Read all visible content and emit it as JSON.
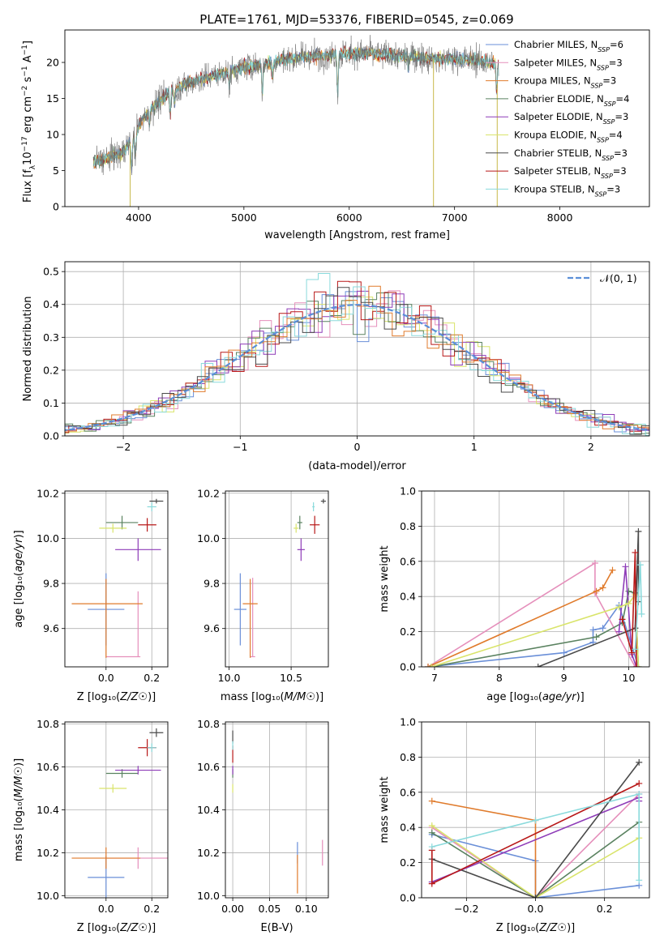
{
  "figure": {
    "title": "PLATE=1761, MJD=53376, FIBERID=0545, z=0.069"
  },
  "colors": {
    "Chabrier MILES": "#6a8fd8",
    "Salpeter MILES": "#e58fbb",
    "Kroupa MILES": "#e07b2c",
    "Chabrier ELODIE": "#5a8260",
    "Salpeter ELODIE": "#8e3cb8",
    "Kroupa ELODIE": "#d9e46a",
    "Chabrier STELIB": "#4a4a4a",
    "Salpeter STELIB": "#b81818",
    "Kroupa STELIB": "#8adadc"
  },
  "chart_data": [
    {
      "id": "spectrum",
      "type": "line",
      "xlabel": "wavelength [Angstrom, rest frame]",
      "ylabel": "Flux [f_λ10^-17 erg cm^-2 s^-1 A^-1]",
      "xlim": [
        3300,
        8850
      ],
      "ylim": [
        0,
        24.5
      ],
      "xticks": [
        4000,
        5000,
        6000,
        7000,
        8000
      ],
      "yticks": [
        0,
        5,
        10,
        15,
        20
      ],
      "legend_position": "right",
      "legend": [
        {
          "model": "Chabrier MILES",
          "nssp": "6"
        },
        {
          "model": "Salpeter MILES",
          "nssp": "3"
        },
        {
          "model": "Kroupa MILES",
          "nssp": "3"
        },
        {
          "model": "Chabrier ELODIE",
          "nssp": "4"
        },
        {
          "model": "Salpeter ELODIE",
          "nssp": "3"
        },
        {
          "model": "Kroupa ELODIE",
          "nssp": "4"
        },
        {
          "model": "Chabrier STELIB",
          "nssp": "3"
        },
        {
          "model": "Salpeter STELIB",
          "nssp": "3"
        },
        {
          "model": "Kroupa STELIB",
          "nssp": "3"
        }
      ],
      "continuum": {
        "x": [
          3570,
          3650,
          3750,
          3850,
          3950,
          4050,
          4150,
          4300,
          4450,
          4600,
          4800,
          5000,
          5200,
          5400,
          5600,
          5800,
          6000,
          6200,
          6400,
          6600,
          6800,
          7000,
          7200,
          7400
        ],
        "y": [
          6.0,
          6.5,
          7.0,
          7.5,
          9.5,
          12.5,
          14.0,
          16.0,
          17.0,
          17.7,
          18.5,
          19.3,
          19.8,
          20.5,
          20.8,
          21.0,
          21.2,
          21.3,
          21.0,
          20.8,
          20.5,
          20.5,
          20.3,
          19.8
        ]
      },
      "absorption_features": [
        {
          "x": 3934,
          "depth": 4.0
        },
        {
          "x": 3969,
          "depth": 3.0
        },
        {
          "x": 4102,
          "depth": 2.0
        },
        {
          "x": 4300,
          "depth": 3.0
        },
        {
          "x": 4340,
          "depth": 2.0
        },
        {
          "x": 4861,
          "depth": 2.0
        },
        {
          "x": 5175,
          "depth": 4.0
        },
        {
          "x": 5270,
          "depth": 2.0
        },
        {
          "x": 5890,
          "depth": 5.5
        },
        {
          "x": 6563,
          "depth": 1.5
        },
        {
          "x": 7400,
          "depth": 4.0
        }
      ],
      "masked_spikes": [
        {
          "x": 3920,
          "to": 0
        },
        {
          "x": 6800,
          "to": 0
        },
        {
          "x": 7405,
          "to": 0
        }
      ]
    },
    {
      "id": "residuals",
      "type": "histogram",
      "xlabel": "(data-model)/error",
      "ylabel": "Normed distribution",
      "xlim": [
        -2.5,
        2.5
      ],
      "ylim": [
        0,
        0.53
      ],
      "xticks": [
        -2,
        -1,
        0,
        1,
        2
      ],
      "yticks": [
        0.0,
        0.1,
        0.2,
        0.3,
        0.4,
        0.5
      ],
      "bin_width": 0.1,
      "reference_curve": {
        "name": "N(0,1)",
        "legend_position": "top-right"
      }
    },
    {
      "id": "age-vs-Z",
      "type": "errorbar",
      "xlabel": "Z [log10(Z/Z☉)]",
      "ylabel": "age [log10(age/yr)]",
      "xlim": [
        -0.18,
        0.27
      ],
      "ylim": [
        9.43,
        10.21
      ],
      "xticks": [
        0.0,
        0.2
      ],
      "yticks": [
        9.6,
        9.8,
        10.0,
        10.2
      ],
      "points": [
        {
          "model": "Chabrier MILES",
          "x": 0.0,
          "y": 9.685,
          "xerr": 0.08,
          "yerr": 0.16
        },
        {
          "model": "Salpeter MILES",
          "x": 0.14,
          "y": 9.475,
          "xerr": [
            0.14,
            0.01
          ],
          "yerr": [
            0.0,
            0.29
          ]
        },
        {
          "model": "Kroupa MILES",
          "x": 0.0,
          "y": 9.71,
          "xerr": [
            0.15,
            0.16
          ],
          "yerr": [
            0.24,
            0.11
          ]
        },
        {
          "model": "Chabrier ELODIE",
          "x": 0.07,
          "y": 10.07,
          "xerr": 0.07,
          "yerr": 0.03
        },
        {
          "model": "Salpeter ELODIE",
          "x": 0.14,
          "y": 9.95,
          "xerr": 0.1,
          "yerr": 0.05
        },
        {
          "model": "Kroupa ELODIE",
          "x": 0.03,
          "y": 10.045,
          "xerr": 0.06,
          "yerr": 0.02
        },
        {
          "model": "Chabrier STELIB",
          "x": 0.22,
          "y": 10.165,
          "xerr": 0.03,
          "yerr": 0.01
        },
        {
          "model": "Salpeter STELIB",
          "x": 0.18,
          "y": 10.06,
          "xerr": 0.04,
          "yerr": 0.03
        },
        {
          "model": "Kroupa STELIB",
          "x": 0.2,
          "y": 10.14,
          "xerr": 0.02,
          "yerr": 0.02
        }
      ]
    },
    {
      "id": "age-vs-mass",
      "type": "errorbar",
      "xlabel": "mass [log10(M/M☉)]",
      "ylabel": "",
      "xlim": [
        9.97,
        10.8
      ],
      "ylim": [
        9.43,
        10.21
      ],
      "xticks": [
        10.0,
        10.5
      ],
      "yticks": [
        9.6,
        9.8,
        10.0,
        10.2
      ],
      "points": [
        {
          "model": "Chabrier MILES",
          "x": 10.09,
          "y": 9.685,
          "xerr": 0.05,
          "yerr": 0.16
        },
        {
          "model": "Salpeter MILES",
          "x": 10.19,
          "y": 9.475,
          "xerr": 0.02,
          "yerr": [
            0.0,
            0.35
          ]
        },
        {
          "model": "Kroupa MILES",
          "x": 10.17,
          "y": 9.71,
          "xerr": 0.06,
          "yerr": [
            0.24,
            0.11
          ]
        },
        {
          "model": "Chabrier ELODIE",
          "x": 10.57,
          "y": 10.07,
          "xerr": 0.02,
          "yerr": 0.03
        },
        {
          "model": "Salpeter ELODIE",
          "x": 10.58,
          "y": 9.95,
          "xerr": 0.03,
          "yerr": 0.05
        },
        {
          "model": "Kroupa ELODIE",
          "x": 10.54,
          "y": 10.045,
          "xerr": 0.02,
          "yerr": 0.02
        },
        {
          "model": "Chabrier STELIB",
          "x": 10.76,
          "y": 10.165,
          "xerr": 0.02,
          "yerr": 0.01
        },
        {
          "model": "Salpeter STELIB",
          "x": 10.69,
          "y": 10.06,
          "xerr": 0.04,
          "yerr": 0.04
        },
        {
          "model": "Kroupa STELIB",
          "x": 10.68,
          "y": 10.14,
          "xerr": 0.01,
          "yerr": 0.02
        }
      ]
    },
    {
      "id": "weight-vs-age",
      "type": "line",
      "xlabel": "age [log10(age/yr)]",
      "ylabel": "mass weight",
      "xlim": [
        6.8,
        10.32
      ],
      "ylim": [
        0,
        1
      ],
      "xticks": [
        7,
        8,
        9,
        10
      ],
      "yticks": [
        0.0,
        0.2,
        0.4,
        0.6,
        0.8,
        1.0
      ],
      "series": [
        {
          "model": "Chabrier MILES",
          "x": [
            6.9,
            9.0,
            9.45,
            9.45,
            9.6,
            9.85,
            10.15
          ],
          "y": [
            0.0,
            0.08,
            0.14,
            0.21,
            0.22,
            0.35,
            0.0
          ]
        },
        {
          "model": "Salpeter MILES",
          "x": [
            6.9,
            9.48,
            9.48,
            10.1
          ],
          "y": [
            0.0,
            0.59,
            0.42,
            0.0
          ]
        },
        {
          "model": "Kroupa MILES",
          "x": [
            6.9,
            9.5,
            9.6,
            9.75
          ],
          "y": [
            0.0,
            0.43,
            0.45,
            0.55
          ]
        },
        {
          "model": "Chabrier ELODIE",
          "x": [
            6.95,
            9.5,
            9.9,
            10.0,
            10.1,
            10.15
          ],
          "y": [
            0.0,
            0.17,
            0.25,
            0.43,
            0.42,
            0.0
          ]
        },
        {
          "model": "Salpeter ELODIE",
          "x": [
            9.85,
            9.95,
            10.05,
            10.12
          ],
          "y": [
            0.2,
            0.57,
            0.07,
            0.0
          ]
        },
        {
          "model": "Kroupa ELODIE",
          "x": [
            6.95,
            9.85,
            10.0,
            10.1,
            10.15
          ],
          "y": [
            0.0,
            0.34,
            0.36,
            0.41,
            0.0
          ]
        },
        {
          "model": "Chabrier STELIB",
          "x": [
            8.6,
            10.1,
            10.15,
            10.15
          ],
          "y": [
            0.0,
            0.22,
            0.77,
            0.37
          ]
        },
        {
          "model": "Salpeter STELIB",
          "x": [
            9.9,
            10.05,
            10.1,
            10.12
          ],
          "y": [
            0.27,
            0.08,
            0.65,
            0.0
          ]
        },
        {
          "model": "Kroupa STELIB",
          "x": [
            10.1,
            10.18,
            10.2
          ],
          "y": [
            0.1,
            0.58,
            0.3
          ]
        }
      ]
    },
    {
      "id": "mass-vs-Z",
      "type": "errorbar",
      "xlabel": "Z [log10(Z/Z☉)]",
      "ylabel": "mass [log10(M/M☉)]",
      "xlim": [
        -0.18,
        0.27
      ],
      "ylim": [
        9.99,
        10.81
      ],
      "xticks": [
        0.0,
        0.2
      ],
      "yticks": [
        10.0,
        10.2,
        10.4,
        10.6,
        10.8
      ],
      "points": [
        {
          "model": "Chabrier MILES",
          "x": 0.0,
          "y": 10.085,
          "xerr": 0.08,
          "yerr": 0.1
        },
        {
          "model": "Salpeter MILES",
          "x": 0.14,
          "y": 10.175,
          "xerr": 0.14,
          "yerr": 0.05
        },
        {
          "model": "Kroupa MILES",
          "x": 0.0,
          "y": 10.175,
          "xerr": 0.15,
          "yerr": 0.05
        },
        {
          "model": "Chabrier ELODIE",
          "x": 0.07,
          "y": 10.57,
          "xerr": 0.07,
          "yerr": 0.02
        },
        {
          "model": "Salpeter ELODIE",
          "x": 0.14,
          "y": 10.585,
          "xerr": 0.1,
          "yerr": 0.02
        },
        {
          "model": "Kroupa ELODIE",
          "x": 0.03,
          "y": 10.5,
          "xerr": 0.06,
          "yerr": 0.02
        },
        {
          "model": "Chabrier STELIB",
          "x": 0.22,
          "y": 10.76,
          "xerr": 0.03,
          "yerr": 0.02
        },
        {
          "model": "Salpeter STELIB",
          "x": 0.18,
          "y": 10.69,
          "xerr": 0.04,
          "yerr": 0.04
        },
        {
          "model": "Kroupa STELIB",
          "x": 0.2,
          "y": 10.69,
          "xerr": 0.02,
          "yerr": 0.02
        }
      ]
    },
    {
      "id": "mass-vs-EBV",
      "type": "errorbar",
      "xlabel": "E(B-V)",
      "ylabel": "",
      "xlim": [
        -0.01,
        0.13
      ],
      "ylim": [
        9.99,
        10.81
      ],
      "xticks": [
        0.0,
        0.05,
        0.1
      ],
      "yticks": [
        10.0,
        10.2,
        10.4,
        10.6,
        10.8
      ],
      "points": [
        {
          "model": "Chabrier MILES",
          "x": 0.088,
          "y": 10.2,
          "xerr": 0.0,
          "yerr": 0.05
        },
        {
          "model": "Salpeter MILES",
          "x": 0.122,
          "y": 10.2,
          "xerr": 0.0,
          "yerr": 0.06
        },
        {
          "model": "Kroupa MILES",
          "x": 0.088,
          "y": 10.1,
          "xerr": 0.0,
          "yerr": 0.09
        },
        {
          "model": "Chabrier ELODIE",
          "x": 0.0,
          "y": 10.57,
          "xerr": 0.0,
          "yerr": 0.02
        },
        {
          "model": "Salpeter ELODIE",
          "x": 0.0,
          "y": 10.585,
          "xerr": 0.0,
          "yerr": 0.02
        },
        {
          "model": "Kroupa ELODIE",
          "x": 0.0,
          "y": 10.5,
          "xerr": 0.0,
          "yerr": 0.02
        },
        {
          "model": "Chabrier STELIB",
          "x": 0.0,
          "y": 10.74,
          "xerr": 0.0,
          "yerr": 0.03
        },
        {
          "model": "Salpeter STELIB",
          "x": 0.0,
          "y": 10.66,
          "xerr": 0.0,
          "yerr": 0.04
        },
        {
          "model": "Kroupa STELIB",
          "x": 0.0,
          "y": 10.7,
          "xerr": 0.0,
          "yerr": 0.02
        }
      ]
    },
    {
      "id": "weight-vs-Z",
      "type": "line",
      "xlabel": "Z [log10(Z/Z☉)]",
      "ylabel": "mass weight",
      "xlim": [
        -0.33,
        0.33
      ],
      "ylim": [
        0,
        1
      ],
      "xticks": [
        -0.2,
        0.0,
        0.2
      ],
      "yticks": [
        0.0,
        0.2,
        0.4,
        0.6,
        0.8,
        1.0
      ],
      "series": [
        {
          "model": "Chabrier MILES",
          "x": [
            -0.3,
            0.0,
            0.0,
            0.3
          ],
          "y": [
            0.36,
            0.21,
            0.0,
            0.07
          ]
        },
        {
          "model": "Salpeter MILES",
          "x": [
            -0.3,
            0.0,
            0.3
          ],
          "y": [
            0.4,
            0.0,
            0.59
          ]
        },
        {
          "model": "Kroupa MILES",
          "x": [
            -0.3,
            0.0,
            0.0
          ],
          "y": [
            0.55,
            0.44,
            0.0
          ]
        },
        {
          "model": "Chabrier ELODIE",
          "x": [
            -0.3,
            0.0,
            0.3
          ],
          "y": [
            0.37,
            0.0,
            0.43
          ]
        },
        {
          "model": "Salpeter ELODIE",
          "x": [
            -0.3,
            0.3,
            0.3
          ],
          "y": [
            0.09,
            0.57,
            0.55
          ]
        },
        {
          "model": "Kroupa ELODIE",
          "x": [
            -0.3,
            0.0,
            0.3
          ],
          "y": [
            0.41,
            0.0,
            0.34
          ]
        },
        {
          "model": "Chabrier STELIB",
          "x": [
            -0.3,
            0.0,
            0.3
          ],
          "y": [
            0.22,
            0.0,
            0.77
          ]
        },
        {
          "model": "Salpeter STELIB",
          "x": [
            -0.3,
            -0.3,
            0.3
          ],
          "y": [
            0.27,
            0.08,
            0.65
          ]
        },
        {
          "model": "Kroupa STELIB",
          "x": [
            -0.3,
            0.0,
            0.3,
            0.3
          ],
          "y": [
            0.29,
            0.44,
            0.59,
            0.1
          ]
        }
      ]
    }
  ]
}
